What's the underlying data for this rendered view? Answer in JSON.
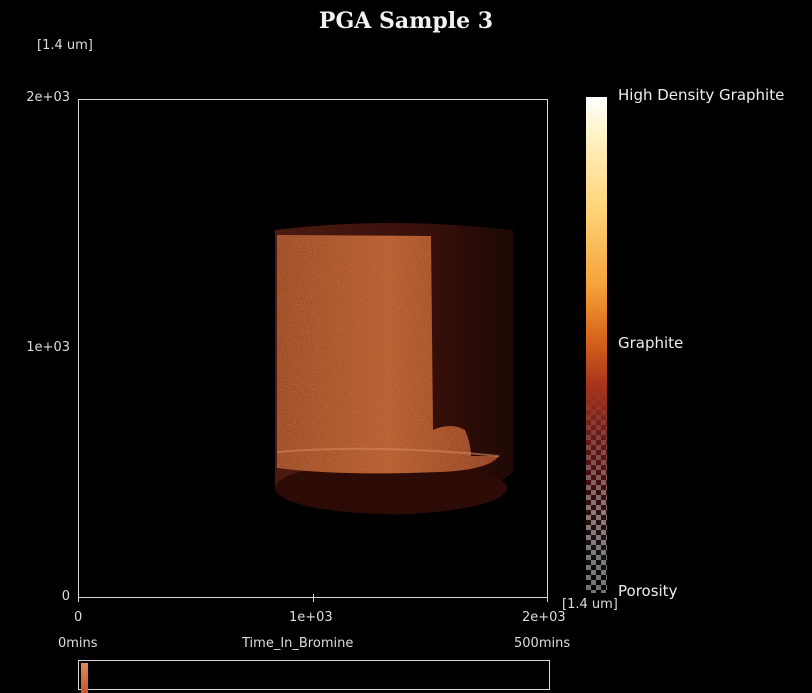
{
  "title": "PGA Sample 3",
  "y_unit_label": "[1.4 um]",
  "x_unit_label": "[1.4 um]",
  "y_ticks": [
    "2e+03",
    "1e+03",
    "0"
  ],
  "x_ticks": [
    "0",
    "1e+03",
    "2e+03"
  ],
  "time": {
    "start": "0mins",
    "label": "Time_In_Bromine",
    "end": "500mins"
  },
  "colorbar": {
    "top_label": "High Density Graphite",
    "mid_label": "Graphite",
    "bottom_label": "Porosity"
  },
  "colors": {
    "background": "#000000",
    "sample_core": "#b0532a",
    "sample_shell": "#3d120c",
    "axis": "#d8d8d8"
  }
}
